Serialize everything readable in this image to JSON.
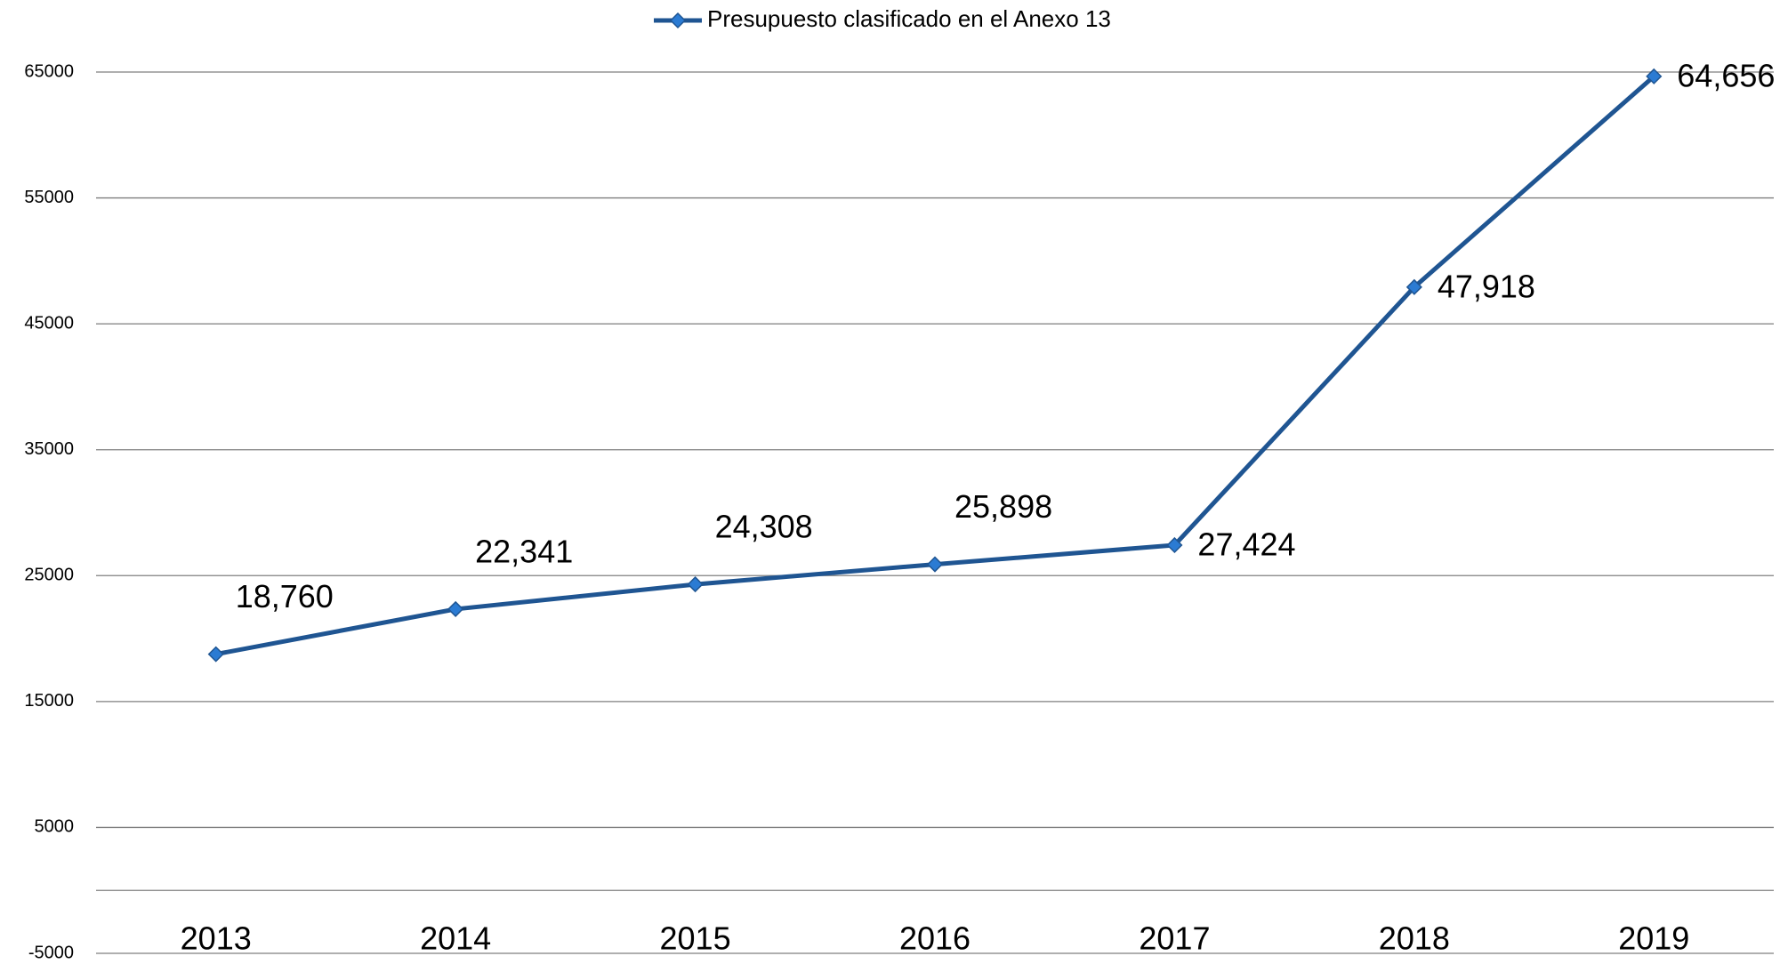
{
  "chart_data": {
    "type": "line",
    "categories": [
      "2013",
      "2014",
      "2015",
      "2016",
      "2017",
      "2018",
      "2019"
    ],
    "series": [
      {
        "name": "Presupuesto clasificado en el Anexo 13",
        "color": "#1f5592",
        "values": [
          18760,
          22341,
          24308,
          25898,
          27424,
          47918,
          64656
        ],
        "value_labels": [
          "18,760",
          "22,341",
          "24,308",
          "25,898",
          "27,424",
          "47,918",
          "64,656"
        ]
      }
    ],
    "ylim": [
      -5000,
      65000
    ],
    "yticks": [
      -5000,
      5000,
      15000,
      25000,
      35000,
      45000,
      55000,
      65000
    ],
    "grid": true,
    "legend": "top"
  }
}
